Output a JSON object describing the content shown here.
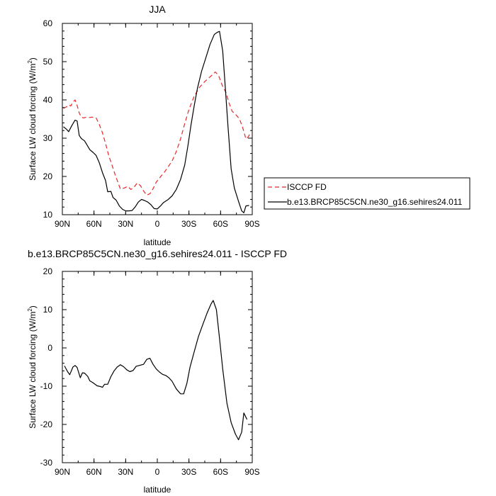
{
  "chart_data": [
    {
      "type": "line",
      "title": "JJA",
      "xlabel": "latitude",
      "ylabel": "Surface LW cloud forcing (W/m",
      "ylabel_sup": "2",
      "ylabel_close": ")",
      "xlim": [
        90,
        -90
      ],
      "ylim": [
        10,
        60
      ],
      "xticks": [
        {
          "value": 90,
          "label": "90N"
        },
        {
          "value": 60,
          "label": "60N"
        },
        {
          "value": 30,
          "label": "30N"
        },
        {
          "value": 0,
          "label": "0"
        },
        {
          "value": -30,
          "label": "30S"
        },
        {
          "value": -60,
          "label": "60S"
        },
        {
          "value": -90,
          "label": "90S"
        }
      ],
      "yticks": [
        10,
        20,
        30,
        40,
        50,
        60
      ],
      "legend_position": "right",
      "series": [
        {
          "name": "ISCCP FD",
          "color": "#e8282a",
          "dash": true,
          "points": [
            [
              89,
              37.8
            ],
            [
              86,
              38.2
            ],
            [
              84,
              38.7
            ],
            [
              82,
              38.4
            ],
            [
              80,
              39.4
            ],
            [
              78,
              40.0
            ],
            [
              76,
              38.6
            ],
            [
              74,
              36.6
            ],
            [
              72,
              35.5
            ],
            [
              70,
              35.3
            ],
            [
              67,
              35.5
            ],
            [
              64,
              35.4
            ],
            [
              62,
              35.5
            ],
            [
              58,
              35.3
            ],
            [
              55,
              33.6
            ],
            [
              52,
              31.4
            ],
            [
              49,
              28.6
            ],
            [
              46,
              25.4
            ],
            [
              43,
              23.0
            ],
            [
              40,
              20.5
            ],
            [
              37,
              18.2
            ],
            [
              35,
              16.7
            ],
            [
              31,
              17.0
            ],
            [
              28,
              17.4
            ],
            [
              25,
              16.6
            ],
            [
              22,
              17.2
            ],
            [
              19,
              18.3
            ],
            [
              16,
              17.6
            ],
            [
              13,
              16.2
            ],
            [
              10,
              15.1
            ],
            [
              7,
              15.5
            ],
            [
              4,
              16.8
            ],
            [
              1,
              18.5
            ],
            [
              -3,
              19.9
            ],
            [
              -7,
              21.2
            ],
            [
              -10,
              22.4
            ],
            [
              -14,
              24.0
            ],
            [
              -18,
              26.5
            ],
            [
              -22,
              29.8
            ],
            [
              -26,
              33.8
            ],
            [
              -30,
              37.5
            ],
            [
              -35,
              41.0
            ],
            [
              -40,
              43.3
            ],
            [
              -45,
              44.8
            ],
            [
              -50,
              46.0
            ],
            [
              -55,
              47.3
            ],
            [
              -58,
              46.4
            ],
            [
              -62,
              43.5
            ],
            [
              -65,
              42.0
            ],
            [
              -68,
              39.2
            ],
            [
              -71,
              37.0
            ],
            [
              -74,
              36.3
            ],
            [
              -78,
              35.0
            ],
            [
              -81,
              32.7
            ],
            [
              -84,
              29.8
            ],
            [
              -86,
              30.3
            ],
            [
              -89,
              31.6
            ]
          ]
        },
        {
          "name": "b.e13.BRCP85C5CN.ne30_g16.sehires24.011",
          "color": "#000000",
          "dash": false,
          "points": [
            [
              89,
              33.0
            ],
            [
              86,
              32.3
            ],
            [
              84,
              31.7
            ],
            [
              81,
              33.3
            ],
            [
              78,
              34.7
            ],
            [
              76,
              34.5
            ],
            [
              74,
              30.7
            ],
            [
              72,
              29.9
            ],
            [
              69,
              29.3
            ],
            [
              67,
              28.4
            ],
            [
              64,
              27.0
            ],
            [
              61,
              26.3
            ],
            [
              58,
              25.5
            ],
            [
              55,
              23.6
            ],
            [
              52,
              21.0
            ],
            [
              49,
              18.9
            ],
            [
              47,
              16.0
            ],
            [
              44,
              16.1
            ],
            [
              42,
              14.5
            ],
            [
              39,
              13.8
            ],
            [
              36,
              12.3
            ],
            [
              33,
              11.4
            ],
            [
              30,
              11.0
            ],
            [
              27,
              11.0
            ],
            [
              24,
              11.1
            ],
            [
              21,
              12.0
            ],
            [
              18,
              13.3
            ],
            [
              15,
              14.0
            ],
            [
              12,
              13.7
            ],
            [
              9,
              13.3
            ],
            [
              6,
              12.6
            ],
            [
              3,
              11.6
            ],
            [
              0,
              11.5
            ],
            [
              -3,
              12.3
            ],
            [
              -6,
              13.2
            ],
            [
              -10,
              13.9
            ],
            [
              -14,
              14.9
            ],
            [
              -18,
              16.6
            ],
            [
              -22,
              19.2
            ],
            [
              -26,
              23.0
            ],
            [
              -29,
              28.0
            ],
            [
              -32,
              33.5
            ],
            [
              -35,
              38.5
            ],
            [
              -38,
              43.0
            ],
            [
              -42,
              47.5
            ],
            [
              -46,
              51.0
            ],
            [
              -50,
              54.5
            ],
            [
              -54,
              57.1
            ],
            [
              -57,
              57.7
            ],
            [
              -59,
              57.9
            ],
            [
              -62,
              52.8
            ],
            [
              -64,
              45.0
            ],
            [
              -67,
              33.0
            ],
            [
              -70,
              22.0
            ],
            [
              -73,
              17.0
            ],
            [
              -77,
              13.5
            ],
            [
              -80,
              11.0
            ],
            [
              -82,
              10.5
            ],
            [
              -84,
              12.3
            ],
            [
              -87,
              12.4
            ]
          ]
        }
      ]
    },
    {
      "type": "line",
      "title": "b.e13.BRCP85C5CN.ne30_g16.sehires24.011 - ISCCP FD",
      "xlabel": "latitude",
      "ylabel": "Surface LW cloud forcing (W/m",
      "ylabel_sup": "2",
      "ylabel_close": ")",
      "xlim": [
        90,
        -90
      ],
      "ylim": [
        -30,
        20
      ],
      "xticks": [
        {
          "value": 90,
          "label": "90N"
        },
        {
          "value": 60,
          "label": "60N"
        },
        {
          "value": 30,
          "label": "30N"
        },
        {
          "value": 0,
          "label": "0"
        },
        {
          "value": -30,
          "label": "30S"
        },
        {
          "value": -60,
          "label": "60S"
        },
        {
          "value": -90,
          "label": "90S"
        }
      ],
      "yticks": [
        -30,
        -20,
        -10,
        0,
        10,
        20
      ],
      "series": [
        {
          "color": "#000000",
          "dash": false,
          "points": [
            [
              88,
              -4.7
            ],
            [
              85,
              -6.2
            ],
            [
              83,
              -7.0
            ],
            [
              80,
              -5.0
            ],
            [
              78,
              -4.6
            ],
            [
              76,
              -5.1
            ],
            [
              73,
              -7.8
            ],
            [
              71,
              -6.5
            ],
            [
              69,
              -6.6
            ],
            [
              66,
              -7.4
            ],
            [
              64,
              -8.6
            ],
            [
              61,
              -9.1
            ],
            [
              57,
              -9.9
            ],
            [
              54,
              -10.1
            ],
            [
              52,
              -10.3
            ],
            [
              50,
              -9.5
            ],
            [
              47,
              -9.5
            ],
            [
              44,
              -7.5
            ],
            [
              41,
              -6.0
            ],
            [
              38,
              -5.0
            ],
            [
              35,
              -4.4
            ],
            [
              32,
              -4.9
            ],
            [
              29,
              -5.7
            ],
            [
              26,
              -6.2
            ],
            [
              23,
              -5.9
            ],
            [
              20,
              -4.8
            ],
            [
              16,
              -4.5
            ],
            [
              13,
              -4.3
            ],
            [
              10,
              -3.0
            ],
            [
              7,
              -2.7
            ],
            [
              4,
              -4.3
            ],
            [
              1,
              -5.5
            ],
            [
              -2,
              -6.3
            ],
            [
              -5,
              -6.9
            ],
            [
              -8,
              -7.2
            ],
            [
              -11,
              -7.8
            ],
            [
              -14,
              -8.7
            ],
            [
              -18,
              -10.7
            ],
            [
              -22,
              -12.0
            ],
            [
              -25,
              -12.0
            ],
            [
              -28,
              -9.3
            ],
            [
              -31,
              -5.0
            ],
            [
              -35,
              -1.0
            ],
            [
              -39,
              3.0
            ],
            [
              -43,
              6.0
            ],
            [
              -47,
              9.0
            ],
            [
              -51,
              11.5
            ],
            [
              -53,
              12.4
            ],
            [
              -56,
              10.0
            ],
            [
              -59,
              2.5
            ],
            [
              -62,
              -5.5
            ],
            [
              -66,
              -14.5
            ],
            [
              -70,
              -19.5
            ],
            [
              -74,
              -22.5
            ],
            [
              -77,
              -24.0
            ],
            [
              -80,
              -22.0
            ],
            [
              -82,
              -17.0
            ],
            [
              -85,
              -18.7
            ]
          ]
        }
      ]
    }
  ]
}
